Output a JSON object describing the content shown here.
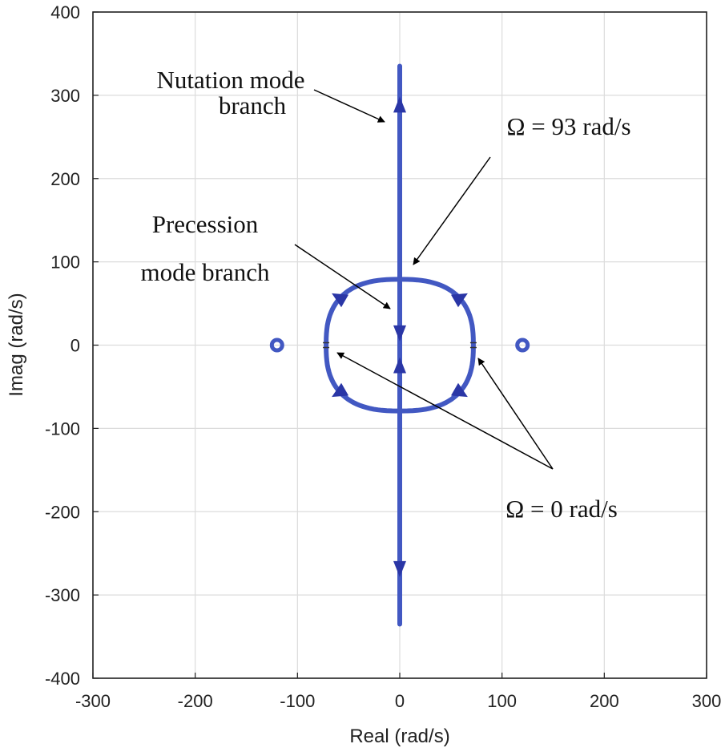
{
  "chart_data": {
    "type": "line",
    "title": "",
    "xlabel": "Real (rad/s)",
    "ylabel": "Imag (rad/s)",
    "xlim": [
      -300,
      300
    ],
    "ylim": [
      -400,
      400
    ],
    "xticks": [
      "-300",
      "-200",
      "-100",
      "0",
      "100",
      "200",
      "300"
    ],
    "yticks": [
      "400",
      "300",
      "200",
      "100",
      "0",
      "-100",
      "-200",
      "-300",
      "-400"
    ],
    "grid": true,
    "line_color": "#4258c2",
    "arrow_color": "#2a36a6",
    "series": [
      {
        "kind": "vertical-branch",
        "x": [
          0,
          0
        ],
        "y": [
          -335,
          335
        ]
      },
      {
        "kind": "loop",
        "center": [
          0,
          0
        ],
        "real_radius": 72,
        "imag_radius": 79
      },
      {
        "kind": "zeros",
        "x": [
          -120,
          120
        ],
        "y": [
          0,
          0
        ]
      }
    ],
    "direction_arrows": [
      {
        "x": 0,
        "y": 288,
        "dir": "up"
      },
      {
        "x": 0,
        "y": 15,
        "dir": "down"
      },
      {
        "x": 0,
        "y": -25,
        "dir": "up"
      },
      {
        "x": 0,
        "y": -268,
        "dir": "down"
      }
    ],
    "annotations": [
      {
        "lines": [
          "Nutation mode",
          "branch"
        ]
      },
      {
        "lines": [
          "Ω  = 93 rad/s"
        ]
      },
      {
        "lines": [
          "Precession",
          "mode branch"
        ]
      },
      {
        "lines": [
          "Ω  = 0 rad/s"
        ]
      }
    ]
  }
}
